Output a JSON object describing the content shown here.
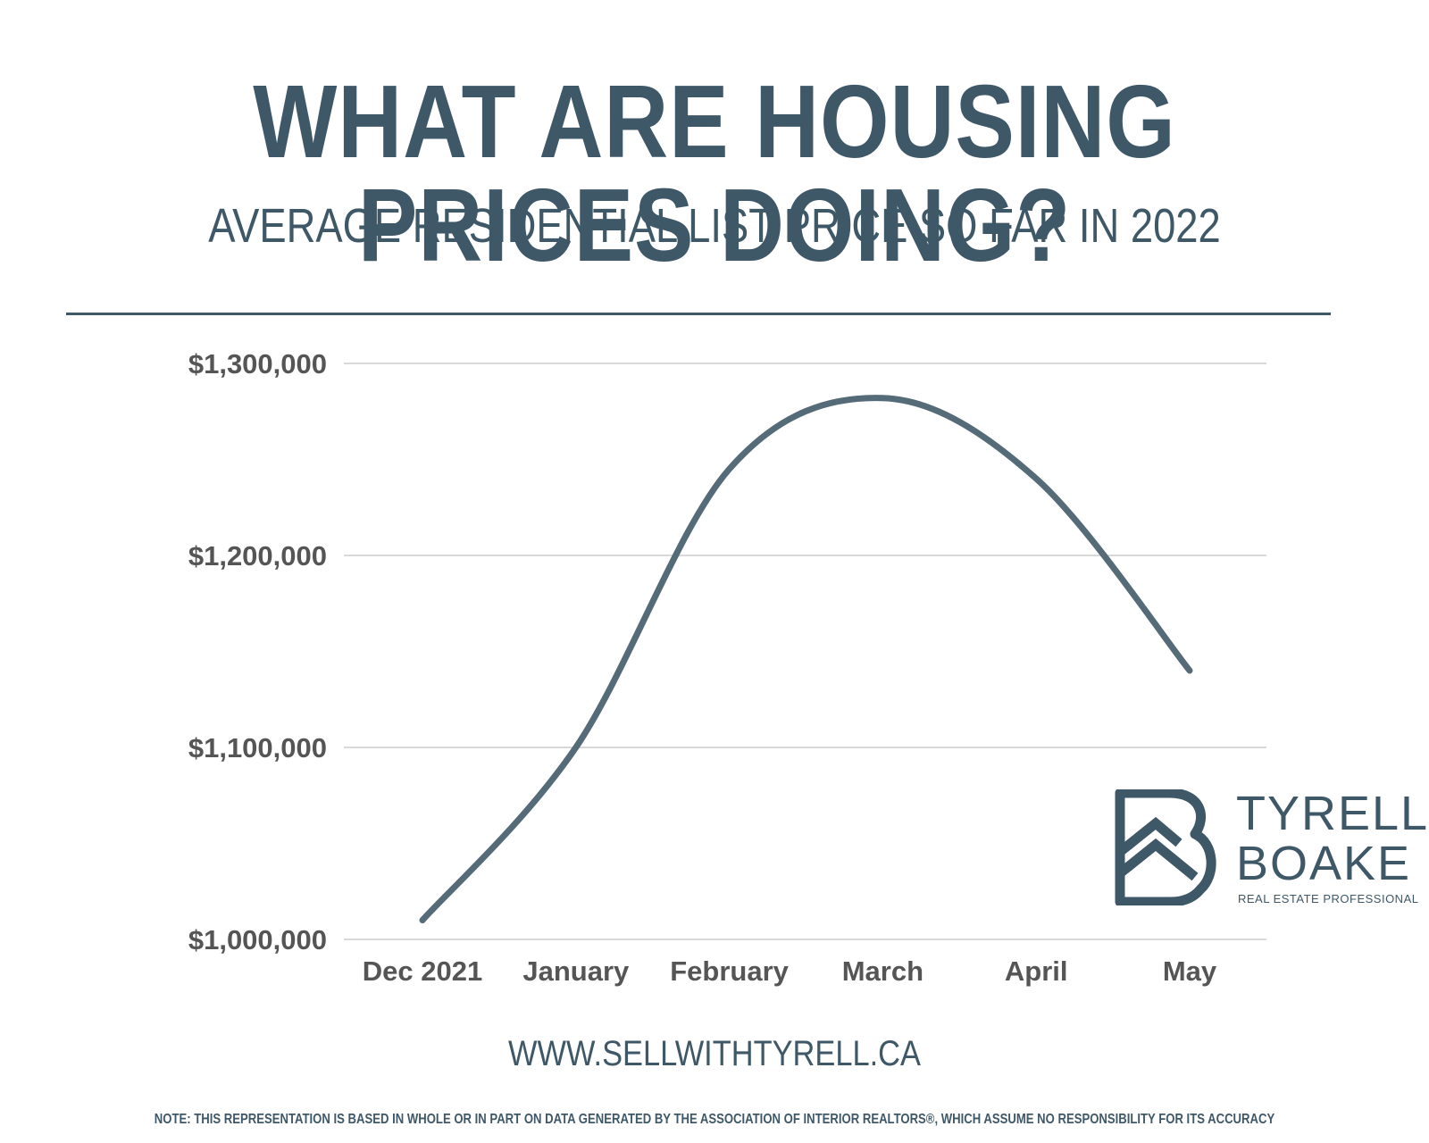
{
  "header": {
    "title": "WHAT ARE HOUSING PRICES DOING?",
    "subtitle": "AVERAGE RESIDENTIAL LIST PRICE SO FAR IN 2022"
  },
  "chart_data": {
    "type": "line",
    "categories": [
      "Dec 2021",
      "January",
      "February",
      "March",
      "April",
      "May"
    ],
    "series": [
      {
        "values": [
          1010000,
          1100000,
          1245000,
          1282000,
          1240000,
          1140000
        ]
      }
    ],
    "ylim": [
      1000000,
      1300000
    ],
    "yticks": [
      1000000,
      1100000,
      1200000,
      1300000
    ],
    "ytick_labels": [
      "$1,000,000",
      "$1,100,000",
      "$1,200,000",
      "$1,300,000"
    ],
    "grid": true,
    "line_color": "#566b78",
    "grid_color": "#d9d9d9",
    "label_color": "#555555"
  },
  "logo": {
    "name_line1": "TYRELL",
    "name_line2": "BOAKE",
    "tagline": "REAL ESTATE PROFESSIONAL",
    "color": "#3f5868"
  },
  "footer": {
    "website": "WWW.SELLWITHTYRELL.CA",
    "note": "NOTE:  THIS REPRESENTATION IS BASED IN WHOLE OR IN PART ON DATA GENERATED BY THE ASSOCIATION OF INTERIOR REALTORS®, WHICH ASSUME NO RESPONSIBILITY FOR ITS ACCURACY"
  }
}
